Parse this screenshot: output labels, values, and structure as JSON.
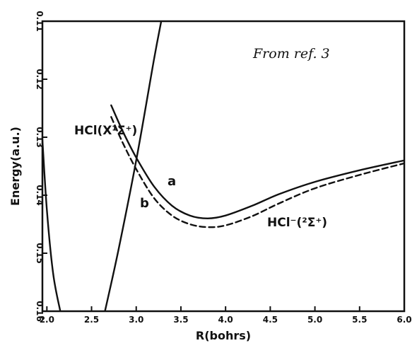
{
  "chart_data": {
    "type": "line",
    "title": "",
    "xlabel": "R(bohrs)",
    "ylabel": "Energy(a.u.)",
    "xlim": [
      1.95,
      6.0
    ],
    "ylim": [
      -0.16,
      -0.11
    ],
    "x_ticks": [
      2.0,
      2.5,
      3.0,
      3.5,
      4.0,
      4.5,
      5.0,
      5.5,
      6.0
    ],
    "x_tick_labels": [
      "2.0",
      "2.5",
      "3.0",
      "3.5",
      "4.0",
      "4.5",
      "5.0",
      "5.5",
      "6.0"
    ],
    "y_ticks": [
      -0.11,
      -0.12,
      -0.13,
      -0.14,
      -0.15,
      -0.16
    ],
    "y_tick_labels": [
      "0.11",
      "0.12",
      "0.13",
      "0.14",
      "0.15",
      "0.16"
    ],
    "grid": false,
    "series": [
      {
        "name": "HCl(X¹Σ⁺)",
        "style": "solid",
        "x": [
          1.95,
          2.0,
          2.07,
          2.15
        ],
        "y": [
          -0.1305,
          -0.1425,
          -0.1535,
          -0.16
        ]
      },
      {
        "name": "HCl(X¹Σ⁺)",
        "style": "solid",
        "x": [
          2.65,
          2.8,
          3.0,
          3.2,
          3.28
        ],
        "y": [
          -0.16,
          -0.1495,
          -0.134,
          -0.1165,
          -0.11
        ]
      },
      {
        "name": "a",
        "style": "solid",
        "x": [
          2.72,
          2.85,
          3.0,
          3.2,
          3.4,
          3.6,
          3.8,
          4.0,
          4.3,
          4.6,
          5.0,
          5.5,
          6.0
        ],
        "y": [
          -0.1245,
          -0.129,
          -0.1335,
          -0.1385,
          -0.1418,
          -0.1435,
          -0.144,
          -0.1435,
          -0.1418,
          -0.1398,
          -0.1377,
          -0.1357,
          -0.134
        ]
      },
      {
        "name": "b",
        "style": "dashed",
        "x": [
          2.72,
          2.85,
          3.0,
          3.2,
          3.4,
          3.6,
          3.8,
          4.0,
          4.3,
          4.6,
          5.0,
          5.5,
          6.0
        ],
        "y": [
          -0.1265,
          -0.131,
          -0.1355,
          -0.1405,
          -0.1435,
          -0.145,
          -0.1455,
          -0.1452,
          -0.1436,
          -0.1414,
          -0.1388,
          -0.1365,
          -0.1345
        ]
      }
    ],
    "annotations": [
      {
        "text": "HCl(X¹Σ⁺)",
        "x": 2.1,
        "y": -0.1225
      },
      {
        "text": "a",
        "x": 3.45,
        "y": -0.1395
      },
      {
        "text": "b",
        "x": 3.05,
        "y": -0.1435
      },
      {
        "text": "HCl⁻(²Σ⁺)",
        "x": 4.65,
        "y": -0.1475
      },
      {
        "text": "From ref. 3",
        "x": 4.35,
        "y": -0.1144
      }
    ]
  }
}
